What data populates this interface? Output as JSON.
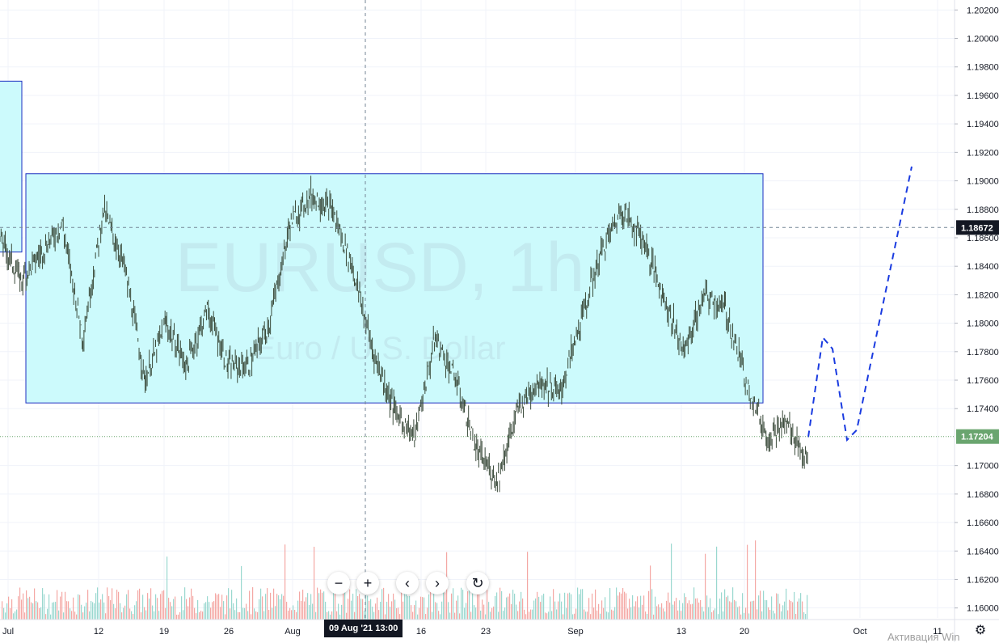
{
  "chart_data": {
    "type": "line",
    "symbol_watermark": "EURUSD, 1h",
    "description_watermark": "Euro / U.S. Dollar",
    "x_ticks": [
      "Jul",
      "12",
      "19",
      "26",
      "Aug",
      "16",
      "23",
      "Sep",
      "13",
      "20",
      "Oct",
      "11"
    ],
    "y_ticks": [
      "1.20200",
      "1.20000",
      "1.19800",
      "1.19600",
      "1.19400",
      "1.19200",
      "1.19000",
      "1.18800",
      "1.18600",
      "1.18400",
      "1.18200",
      "1.18000",
      "1.17800",
      "1.17600",
      "1.17400",
      "1.17000",
      "1.16800",
      "1.16600",
      "1.16400",
      "1.16200",
      "1.16000"
    ],
    "ylim": [
      1.1593,
      1.2027
    ],
    "crosshair_price": "1.18672",
    "last_price": "1.17204",
    "crosshair_time": "09 Aug '21   13:00",
    "price_series": [
      [
        "Jul",
        1.186
      ],
      [
        "Jul",
        1.183
      ],
      [
        "Jul",
        1.185
      ],
      [
        "Jul",
        1.187
      ],
      [
        "12",
        1.179
      ],
      [
        "12",
        1.188
      ],
      [
        "12",
        1.184
      ],
      [
        "12",
        1.176
      ],
      [
        "19",
        1.18
      ],
      [
        "19",
        1.177
      ],
      [
        "19",
        1.181
      ],
      [
        "19",
        1.177
      ],
      [
        "26",
        1.177
      ],
      [
        "26",
        1.18
      ],
      [
        "26",
        1.187
      ],
      [
        "26",
        1.189
      ],
      [
        "Aug",
        1.188
      ],
      [
        "Aug",
        1.184
      ],
      [
        "Aug",
        1.178
      ],
      [
        "Aug",
        1.174
      ],
      [
        "16",
        1.172
      ],
      [
        "16",
        1.179
      ],
      [
        "16",
        1.176
      ],
      [
        "16",
        1.171
      ],
      [
        "23",
        1.169
      ],
      [
        "23",
        1.174
      ],
      [
        "23",
        1.176
      ],
      [
        "23",
        1.175
      ],
      [
        "Sep",
        1.18
      ],
      [
        "Sep",
        1.185
      ],
      [
        "Sep",
        1.188
      ],
      [
        "Sep",
        1.186
      ],
      [
        "13",
        1.182
      ],
      [
        "13",
        1.178
      ],
      [
        "13",
        1.182
      ],
      [
        "13",
        1.181
      ],
      [
        "20",
        1.176
      ],
      [
        "20",
        1.172
      ],
      [
        "20",
        1.173
      ],
      [
        "20",
        1.17
      ]
    ],
    "zones": [
      {
        "name": "upper-zone",
        "from_x": "Jul",
        "to_x": "Jul",
        "y_top": 1.197,
        "y_bottom": 1.185,
        "color": "#ccfafc"
      },
      {
        "name": "range-zone",
        "from_x": "Jul",
        "to_x": "20",
        "y_top": 1.1905,
        "y_bottom": 1.1744,
        "color": "#ccfafc"
      }
    ],
    "projection": [
      [
        1.172
      ],
      [
        1.179
      ],
      [
        1.1782
      ],
      [
        1.1718
      ],
      [
        1.1725
      ],
      [
        1.191
      ]
    ],
    "colors": {
      "up": "#26a69a",
      "down": "#ef5350",
      "candle": "#3a4a3a",
      "zone_fill": "#ccfafc",
      "zone_border": "#1c2fc0",
      "projection": "#1a3be0",
      "last_price_badge": "#6aa56f",
      "crosshair_badge": "#131722"
    }
  },
  "ui": {
    "zoom_out": "−",
    "zoom_in": "+",
    "scroll_left": "‹",
    "scroll_right": "›",
    "reset": "↻",
    "os_watermark": "Активация Win"
  }
}
